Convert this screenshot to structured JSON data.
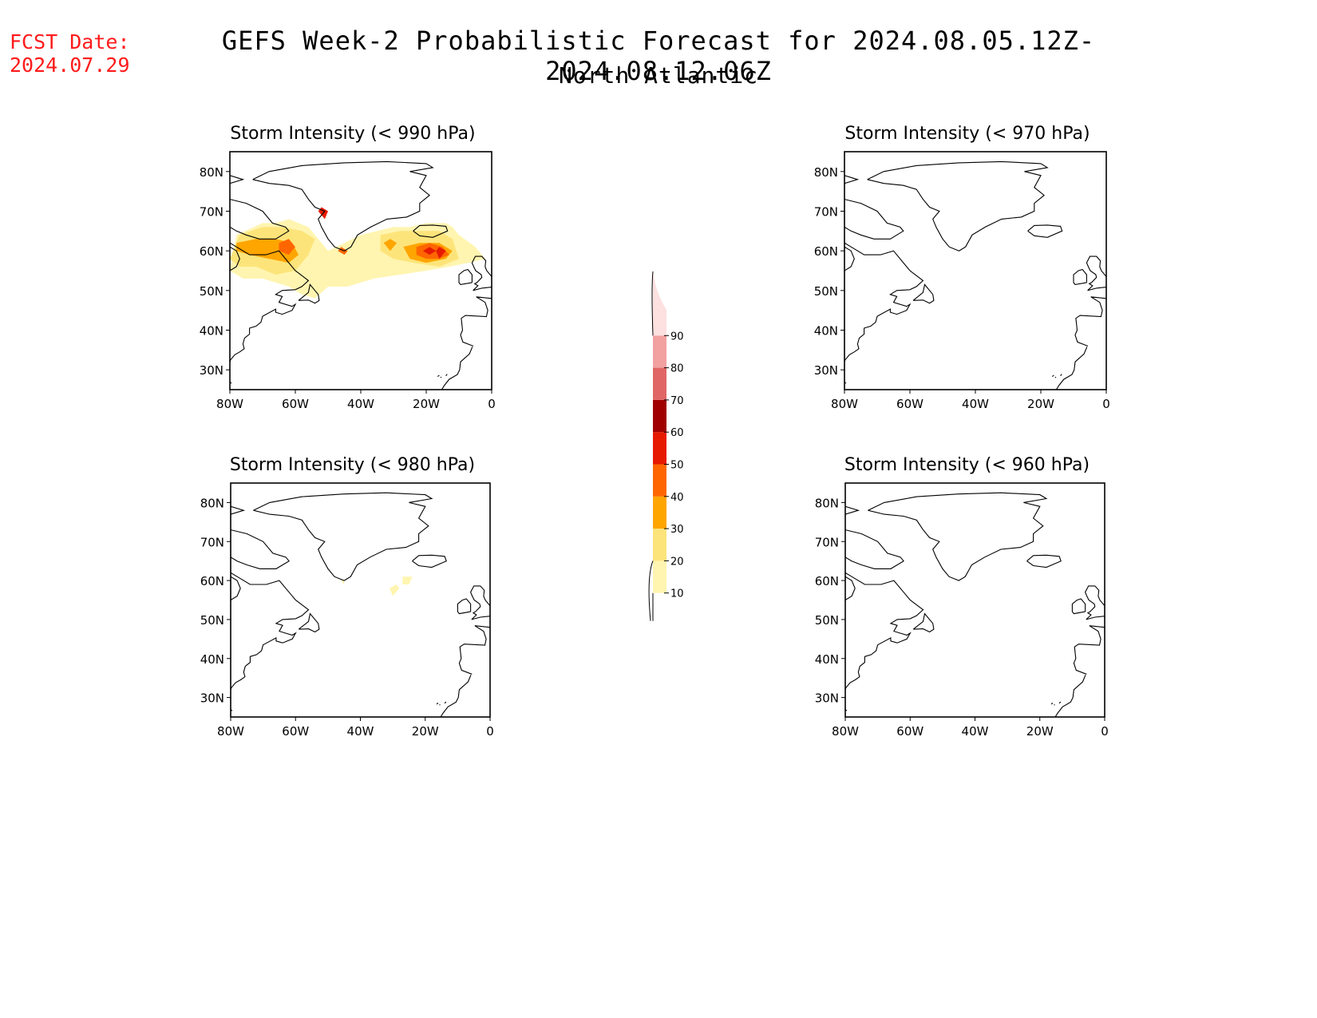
{
  "header": {
    "fcst_label": "FCST Date:",
    "fcst_date": "2024.07.29",
    "title": "GEFS Week-2 Probabilistic Forecast for 2024.08.05.12Z-2024.08.12.06Z",
    "subtitle": "North Atlantic"
  },
  "colors": {
    "fcst_text": "#ff1a1a",
    "coast": "#000000"
  },
  "axes": {
    "lat_labels": [
      "80N",
      "70N",
      "60N",
      "50N",
      "40N",
      "30N"
    ],
    "lon_labels": [
      "80W",
      "60W",
      "40W",
      "20W",
      "0"
    ],
    "lat_range": [
      25,
      85
    ],
    "lon_range": [
      -80,
      0
    ]
  },
  "colorbar": {
    "labels": [
      "10",
      "20",
      "30",
      "40",
      "50",
      "60",
      "70",
      "80",
      "90"
    ],
    "bins": [
      {
        "from": 10,
        "to": 20,
        "color": "#fff5b0"
      },
      {
        "from": 20,
        "to": 30,
        "color": "#fde47a"
      },
      {
        "from": 30,
        "to": 40,
        "color": "#ffa500"
      },
      {
        "from": 40,
        "to": 50,
        "color": "#ff6600"
      },
      {
        "from": 50,
        "to": 60,
        "color": "#e61a00"
      },
      {
        "from": 60,
        "to": 70,
        "color": "#a00000"
      },
      {
        "from": 70,
        "to": 80,
        "color": "#e06666"
      },
      {
        "from": 80,
        "to": 90,
        "color": "#f2a0a0"
      },
      {
        "from": 90,
        "to": 100,
        "color": "#fde0e0"
      }
    ]
  },
  "chart_data": [
    {
      "type": "heatmap",
      "title": "Storm Intensity (< 990 hPa)",
      "regions": [
        {
          "level": 10,
          "points": [
            [
              -80,
              55
            ],
            [
              -78,
              64
            ],
            [
              -70,
              67
            ],
            [
              -66,
              67
            ],
            [
              -62,
              68
            ],
            [
              -56,
              66
            ],
            [
              -52,
              62
            ],
            [
              -50,
              60
            ],
            [
              -45,
              62
            ],
            [
              -40,
              64
            ],
            [
              -35,
              65
            ],
            [
              -30,
              66
            ],
            [
              -25,
              66
            ],
            [
              -20,
              67
            ],
            [
              -14,
              67
            ],
            [
              -12,
              66
            ],
            [
              -10,
              64
            ],
            [
              -5,
              61
            ],
            [
              -2,
              58
            ],
            [
              -7,
              57
            ],
            [
              -13,
              56
            ],
            [
              -20,
              55
            ],
            [
              -28,
              54
            ],
            [
              -36,
              53
            ],
            [
              -44,
              51
            ],
            [
              -50,
              51
            ],
            [
              -54,
              48
            ],
            [
              -58,
              49
            ],
            [
              -62,
              51
            ],
            [
              -70,
              53
            ],
            [
              -76,
              53
            ]
          ]
        },
        {
          "level": 20,
          "points": [
            [
              -80,
              58
            ],
            [
              -77,
              64
            ],
            [
              -70,
              66
            ],
            [
              -64,
              66
            ],
            [
              -58,
              65
            ],
            [
              -54,
              63
            ],
            [
              -56,
              59
            ],
            [
              -60,
              55
            ],
            [
              -66,
              54
            ],
            [
              -72,
              56
            ],
            [
              -77,
              56
            ]
          ]
        },
        {
          "level": 20,
          "points": [
            [
              -34,
              64
            ],
            [
              -28,
              65
            ],
            [
              -22,
              65
            ],
            [
              -16,
              65
            ],
            [
              -12,
              63
            ],
            [
              -10,
              58
            ],
            [
              -16,
              56
            ],
            [
              -24,
              57
            ],
            [
              -30,
              58
            ],
            [
              -34,
              60
            ]
          ]
        },
        {
          "level": 30,
          "points": [
            [
              -78,
              62
            ],
            [
              -72,
              63
            ],
            [
              -66,
              63
            ],
            [
              -61,
              62
            ],
            [
              -59,
              59
            ],
            [
              -62,
              57
            ],
            [
              -68,
              58
            ],
            [
              -74,
              59
            ],
            [
              -78,
              60
            ]
          ]
        },
        {
          "level": 30,
          "points": [
            [
              -27,
              61
            ],
            [
              -22,
              62
            ],
            [
              -16,
              62
            ],
            [
              -12,
              60
            ],
            [
              -14,
              58
            ],
            [
              -20,
              57
            ],
            [
              -25,
              58
            ]
          ]
        },
        {
          "level": 30,
          "points": [
            [
              -33,
              62
            ],
            [
              -31,
              63
            ],
            [
              -29,
              62
            ],
            [
              -31,
              60
            ]
          ]
        },
        {
          "level": 40,
          "points": [
            [
              -23,
              61
            ],
            [
              -19,
              62
            ],
            [
              -15,
              61
            ],
            [
              -13,
              59
            ],
            [
              -16,
              58
            ],
            [
              -20,
              58
            ],
            [
              -23,
              59
            ]
          ]
        },
        {
          "level": 40,
          "points": [
            [
              -65,
              62
            ],
            [
              -62,
              63
            ],
            [
              -60,
              61
            ],
            [
              -62,
              59
            ],
            [
              -65,
              60
            ]
          ]
        },
        {
          "level": 50,
          "points": [
            [
              -21,
              60
            ],
            [
              -19,
              61
            ],
            [
              -17,
              60
            ],
            [
              -19,
              59
            ]
          ]
        },
        {
          "level": 50,
          "points": [
            [
              -16,
              61
            ],
            [
              -14,
              60
            ],
            [
              -16,
              58
            ],
            [
              -17,
              60
            ]
          ]
        },
        {
          "level": 50,
          "points": [
            [
              -52,
              71
            ],
            [
              -50,
              70
            ],
            [
              -51,
              68
            ],
            [
              -53,
              70
            ]
          ]
        },
        {
          "level": 40,
          "points": [
            [
              -46,
              61
            ],
            [
              -44,
              60
            ],
            [
              -45,
              59
            ],
            [
              -47,
              60
            ]
          ]
        }
      ]
    },
    {
      "type": "heatmap",
      "title": "Storm Intensity (< 970 hPa)",
      "regions": []
    },
    {
      "type": "heatmap",
      "title": "Storm Intensity (< 980 hPa)",
      "regions": [
        {
          "level": 10,
          "points": [
            [
              -31,
              58
            ],
            [
              -29,
              59
            ],
            [
              -28,
              58
            ],
            [
              -30,
              56
            ]
          ]
        },
        {
          "level": 10,
          "points": [
            [
              -27,
              61
            ],
            [
              -24,
              61
            ],
            [
              -25,
              59
            ],
            [
              -27,
              59
            ]
          ]
        },
        {
          "level": 10,
          "points": [
            [
              -46,
              60
            ],
            [
              -45,
              60
            ],
            [
              -45,
              59
            ]
          ]
        }
      ]
    },
    {
      "type": "heatmap",
      "title": "Storm Intensity (< 960 hPa)",
      "regions": []
    }
  ]
}
